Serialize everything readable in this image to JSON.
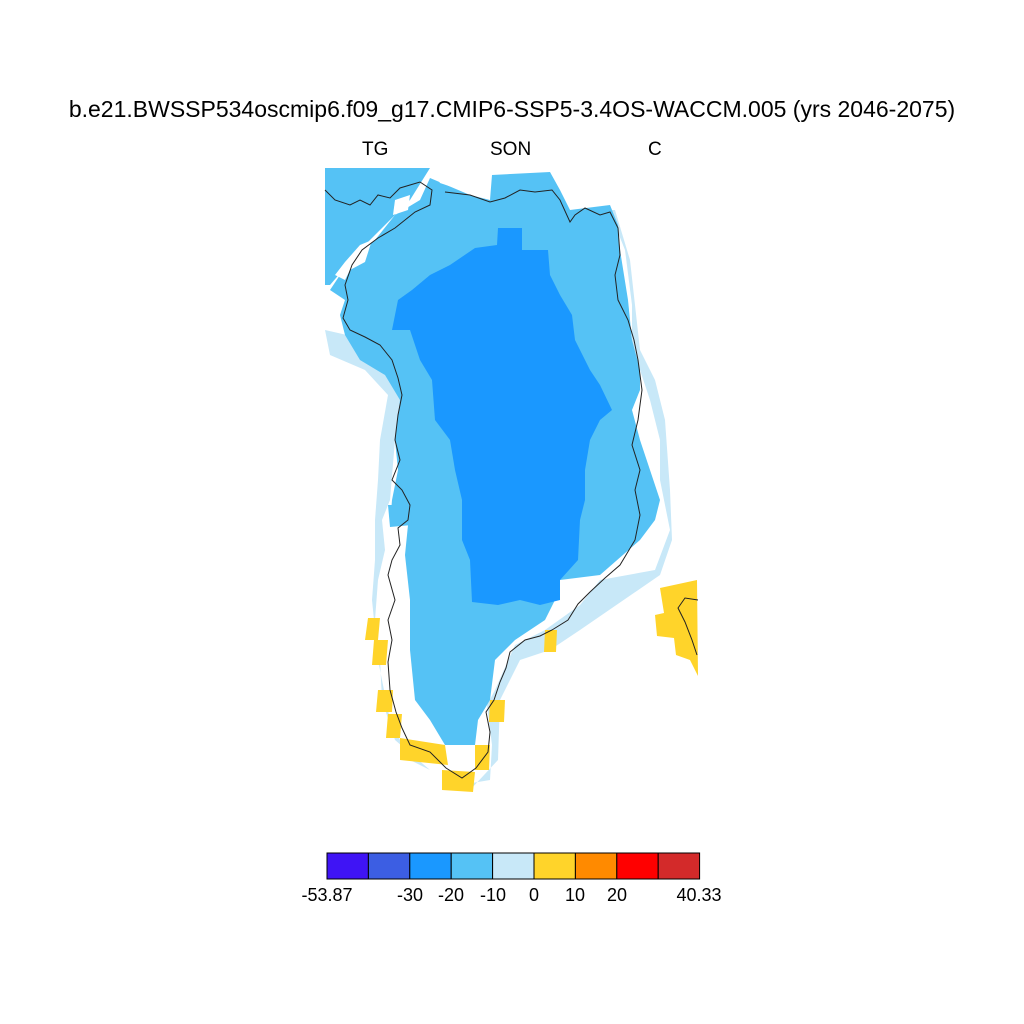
{
  "title": "b.e21.BWSSP534oscmip6.f09_g17.CMIP6-SSP5-3.4OS-WACCM.005 (yrs 2046-2075)",
  "subtitle": {
    "left": "TG",
    "center": "SON",
    "right": "C"
  },
  "colorbar": {
    "colors": [
      "#3f14f5",
      "#3c5ee3",
      "#1a98ff",
      "#55c2f5",
      "#c8e8f8",
      "#ffd42a",
      "#ff8a00",
      "#ff0000",
      "#d32a2a"
    ],
    "labels": [
      "-53.87",
      "-30",
      "-20",
      "-10",
      "0",
      "10",
      "20",
      "40.33"
    ]
  },
  "legend_levels": [
    "-53.87",
    "-30",
    "-20",
    "-10",
    "0",
    "10",
    "20",
    "40.33"
  ]
}
